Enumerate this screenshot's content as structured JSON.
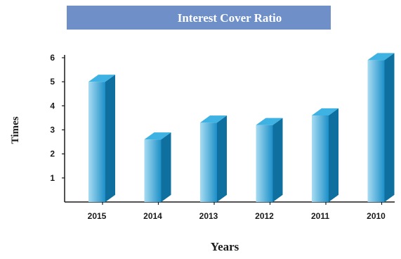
{
  "chart_data": {
    "type": "bar",
    "title": "Interest Cover Ratio",
    "xlabel": "Years",
    "ylabel": "Times",
    "categories": [
      "2015",
      "2014",
      "2013",
      "2012",
      "2011",
      "2010"
    ],
    "values": [
      5.0,
      2.6,
      3.3,
      3.2,
      3.6,
      5.9
    ],
    "ylim": [
      0,
      6
    ],
    "yticks": [
      "1",
      "2",
      "3",
      "4",
      "5",
      "6"
    ],
    "grid": false,
    "legend": "none"
  },
  "colors": {
    "title_band": "#6f8fc9",
    "bar_front_light": "#a8dcf2",
    "bar_front_dark": "#1c8fc8",
    "bar_side": "#0f6f9f",
    "bar_top": "#3eb2e2",
    "axis": "#1a1a1a"
  }
}
